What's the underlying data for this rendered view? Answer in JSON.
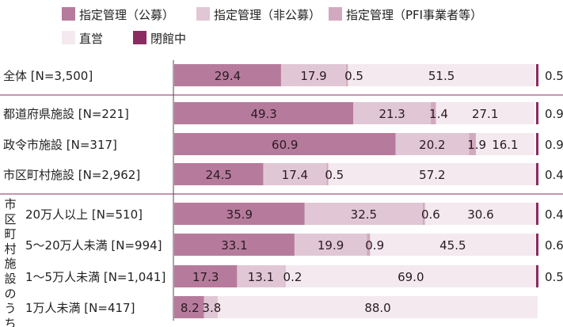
{
  "chart_data": {
    "type": "bar",
    "orientation": "horizontal",
    "stacked": true,
    "xlim": [
      0,
      100
    ],
    "legend_position": "top",
    "series": [
      {
        "name": "指定管理（公募）",
        "color": "#b67b9c"
      },
      {
        "name": "指定管理（非公募）",
        "color": "#e1c7d5"
      },
      {
        "name": "指定管理（PFI事業者等）",
        "color": "#d2a9bf"
      },
      {
        "name": "直営",
        "color": "#f3e9ef"
      },
      {
        "name": "閉館中",
        "color": "#8c2a62"
      }
    ],
    "rows": [
      {
        "label": "全体 [N=3,500]",
        "values": [
          29.4,
          17.9,
          0.5,
          51.5,
          0.5
        ]
      },
      {
        "label": "都道府県施設 [N=221]",
        "values": [
          49.3,
          21.3,
          1.4,
          27.1,
          0.9
        ]
      },
      {
        "label": "政令市施設 [N=317]",
        "values": [
          60.9,
          20.2,
          1.9,
          16.1,
          0.9
        ]
      },
      {
        "label": "市区町村施設 [N=2,962]",
        "values": [
          24.5,
          17.4,
          0.5,
          57.2,
          0.4
        ]
      },
      {
        "label": "20万人以上 [N=510]",
        "values": [
          35.9,
          32.5,
          0.6,
          30.6,
          0.4
        ]
      },
      {
        "label": "5〜20万人未満 [N=994]",
        "values": [
          33.1,
          19.9,
          0.9,
          45.5,
          0.6
        ]
      },
      {
        "label": "1〜5万人未満 [N=1,041]",
        "values": [
          17.3,
          13.1,
          0.2,
          69.0,
          0.5
        ]
      },
      {
        "label": "1万人未満 [N=417]",
        "values": [
          8.2,
          3.8,
          null,
          88.0,
          null
        ]
      }
    ],
    "group_label": "市区町村施設のうち"
  }
}
